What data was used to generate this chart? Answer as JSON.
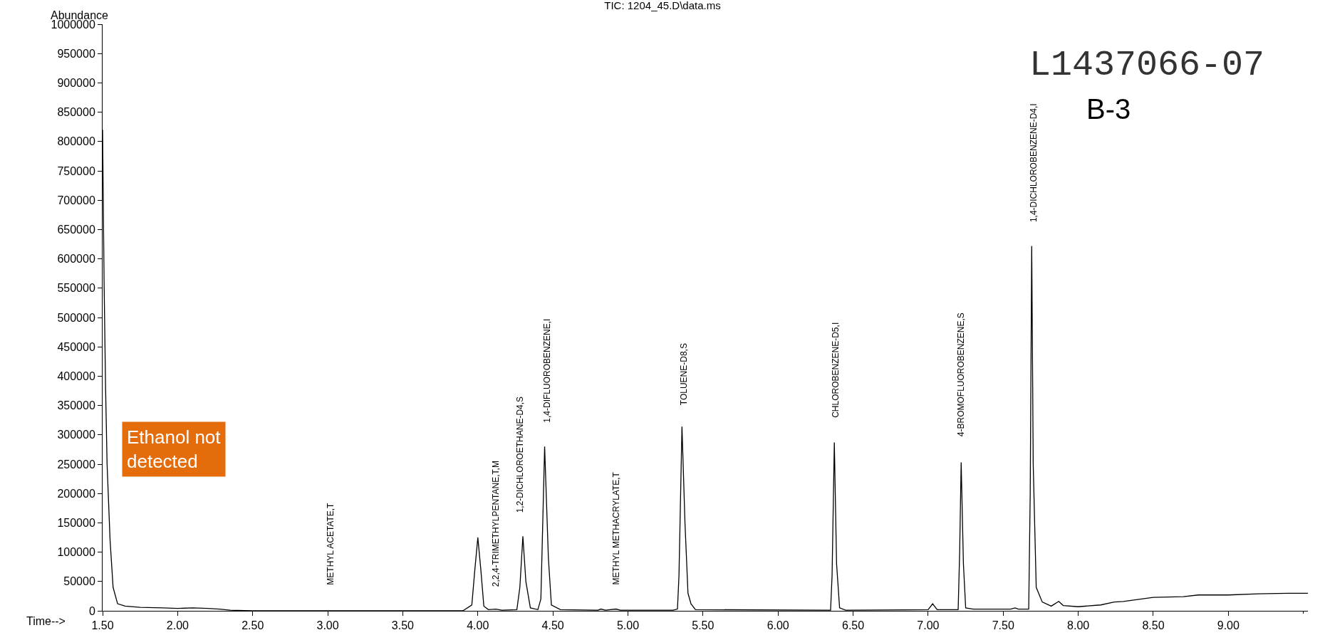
{
  "chart_data": {
    "type": "line",
    "title": "TIC: 1204_45.D\\data.ms",
    "xlabel": "Time-->",
    "ylabel": "Abundance",
    "x": [
      1.5,
      1.51,
      1.52,
      1.53,
      1.55,
      1.57,
      1.6,
      1.65,
      1.75,
      1.9,
      2.0,
      2.1,
      2.2,
      2.28,
      2.35,
      2.5,
      3.0,
      3.9,
      3.96,
      3.98,
      4.0,
      4.02,
      4.04,
      4.07,
      4.12,
      4.16,
      4.26,
      4.28,
      4.3,
      4.32,
      4.35,
      4.4,
      4.42,
      4.445,
      4.47,
      4.49,
      4.55,
      4.8,
      4.82,
      4.85,
      4.92,
      4.95,
      5.3,
      5.33,
      5.34,
      5.36,
      5.38,
      5.4,
      5.42,
      5.45,
      6.35,
      6.36,
      6.375,
      6.39,
      6.41,
      6.45,
      7.0,
      7.03,
      7.06,
      7.2,
      7.21,
      7.22,
      7.235,
      7.25,
      7.3,
      7.55,
      7.58,
      7.6,
      7.67,
      7.68,
      7.69,
      7.7,
      7.72,
      7.76,
      7.82,
      7.87,
      7.9,
      8.0,
      8.15,
      8.24,
      8.3,
      8.5,
      8.7,
      8.8,
      9.0,
      9.2,
      9.4,
      9.53
    ],
    "series": [
      {
        "color": "#000000",
        "values": [
          820000,
          560000,
          380000,
          250000,
          120000,
          40000,
          12000,
          8000,
          6000,
          5000,
          4000,
          5000,
          4000,
          3000,
          1000,
          0,
          0,
          0,
          10000,
          70000,
          125000,
          70000,
          8000,
          2000,
          3000,
          1000,
          2000,
          40000,
          127000,
          50000,
          5000,
          2000,
          20000,
          280000,
          90000,
          10000,
          2000,
          1000,
          3000,
          1000,
          3000,
          1000,
          1000,
          3000,
          60000,
          314000,
          150000,
          30000,
          12000,
          2000,
          1000,
          60000,
          287000,
          80000,
          5000,
          1000,
          2000,
          12000,
          2000,
          2000,
          100000,
          253000,
          80000,
          5000,
          3000,
          3000,
          5000,
          3000,
          3000,
          200000,
          622000,
          250000,
          40000,
          15000,
          8000,
          16000,
          9000,
          7000,
          10000,
          15000,
          16000,
          23000,
          24000,
          27000,
          27000,
          29000,
          30000,
          30000
        ]
      }
    ],
    "xlim": [
      1.5,
      9.53
    ],
    "ylim": [
      0,
      1000000
    ],
    "xticks": [
      {
        "value": 1.5,
        "label": "1.50"
      },
      {
        "value": 2,
        "label": "2.00"
      },
      {
        "value": 2.5,
        "label": "2.50"
      },
      {
        "value": 3,
        "label": "3.00"
      },
      {
        "value": 3.5,
        "label": "3.50"
      },
      {
        "value": 4,
        "label": "4.00"
      },
      {
        "value": 4.5,
        "label": "4.50"
      },
      {
        "value": 5,
        "label": "5.00"
      },
      {
        "value": 5.5,
        "label": "5.50"
      },
      {
        "value": 6,
        "label": "6.00"
      },
      {
        "value": 6.5,
        "label": "6.50"
      },
      {
        "value": 7,
        "label": "7.00"
      },
      {
        "value": 7.5,
        "label": "7.50"
      },
      {
        "value": 8,
        "label": "8.00"
      },
      {
        "value": 8.5,
        "label": "8.50"
      },
      {
        "value": 9,
        "label": "9.00"
      }
    ],
    "yticks": [
      0,
      50000,
      100000,
      150000,
      200000,
      250000,
      300000,
      350000,
      400000,
      450000,
      500000,
      550000,
      600000,
      650000,
      700000,
      750000,
      800000,
      850000,
      900000,
      950000,
      1000000
    ],
    "marker": "none",
    "line_style": "solid",
    "annotations": [
      "L1437066-07",
      "B-3",
      "Ethanol not\ndetected",
      "METHYL ACETATE,T",
      "2,2,4-TRIMETHYLPENTANE,T,M",
      "1,2-DICHLOROETHANE-D4,S",
      "1,4-DIFLUOROBENZENE,I",
      "METHYL METHACRYLATE,T",
      "TOLUENE-D8,S",
      "CHLOROBENZENE-D5,I",
      "4-BROMOFLUOROBENZENE,S",
      "1,4-DICHLOROBENZENE-D4,I"
    ]
  }
}
